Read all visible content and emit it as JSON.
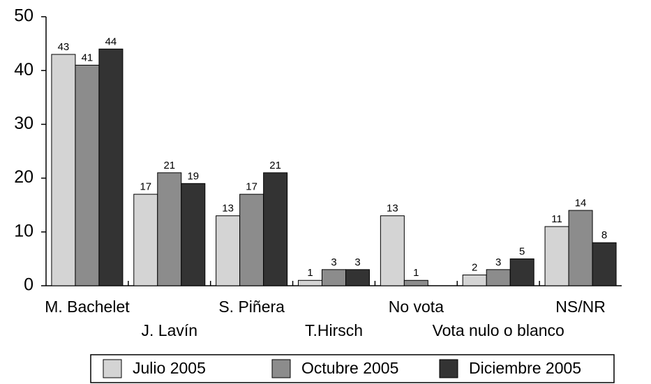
{
  "chart_data": {
    "type": "bar",
    "categories": [
      "M. Bachelet",
      "J. Lavín",
      "S. Piñera",
      "T.Hirsch",
      "No vota",
      "Vota nulo o blanco",
      "NS/NR"
    ],
    "series": [
      {
        "name": "Julio 2005",
        "color": "#d4d4d4",
        "values": [
          43,
          17,
          13,
          1,
          13,
          2,
          11
        ]
      },
      {
        "name": "Octubre 2005",
        "color": "#8c8c8c",
        "values": [
          41,
          21,
          17,
          3,
          1,
          3,
          14
        ]
      },
      {
        "name": "Diciembre 2005",
        "color": "#333333",
        "values": [
          44,
          19,
          21,
          3,
          null,
          5,
          8
        ]
      }
    ],
    "ylim": [
      0,
      50
    ],
    "yticks": [
      0,
      10,
      20,
      30,
      40,
      50
    ],
    "legend": "bottom"
  }
}
